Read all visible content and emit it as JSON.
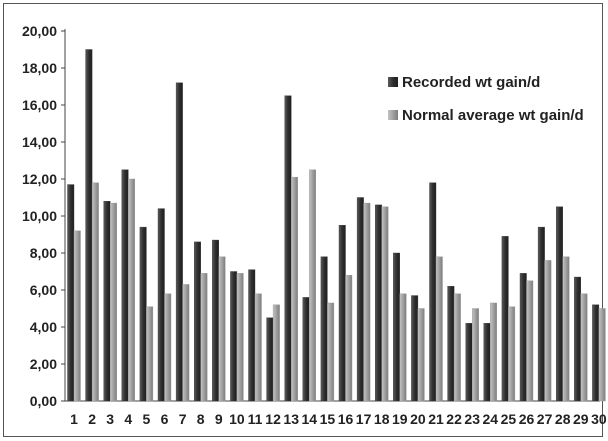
{
  "chart_data": {
    "type": "bar",
    "categories": [
      "1",
      "2",
      "3",
      "4",
      "5",
      "6",
      "7",
      "8",
      "9",
      "10",
      "11",
      "12",
      "13",
      "14",
      "15",
      "16",
      "17",
      "18",
      "19",
      "20",
      "21",
      "22",
      "23",
      "24",
      "25",
      "26",
      "27",
      "28",
      "29",
      "30"
    ],
    "series": [
      {
        "name": "Recorded wt gain/d",
        "color": "#3a3a3a",
        "values": [
          11.7,
          19.0,
          10.8,
          12.5,
          9.4,
          10.4,
          17.2,
          8.6,
          8.7,
          7.0,
          7.1,
          4.5,
          16.5,
          5.6,
          7.8,
          9.5,
          11.0,
          10.6,
          8.0,
          5.7,
          11.8,
          6.2,
          4.2,
          4.2,
          8.9,
          6.9,
          9.4,
          10.5,
          6.7,
          5.2
        ]
      },
      {
        "name": "Normal average wt gain/d",
        "color": "#9a9a9a",
        "values": [
          9.2,
          11.8,
          10.7,
          12.0,
          5.1,
          5.8,
          6.3,
          6.9,
          7.8,
          6.9,
          5.8,
          5.2,
          12.1,
          12.5,
          5.3,
          6.8,
          10.7,
          10.5,
          5.8,
          5.0,
          7.8,
          5.8,
          5.0,
          5.3,
          5.1,
          6.5,
          7.6,
          7.8,
          5.8,
          5.0
        ]
      }
    ],
    "yticks": [
      "0,00",
      "2,00",
      "4,00",
      "6,00",
      "8,00",
      "10,00",
      "12,00",
      "14,00",
      "16,00",
      "18,00",
      "20,00"
    ],
    "ylim": [
      0,
      20
    ],
    "grid": false,
    "legend": "top-right",
    "title": "",
    "xlabel": "",
    "ylabel": ""
  }
}
